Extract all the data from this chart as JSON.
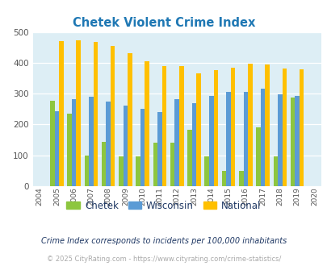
{
  "title": "Chetek Violent Crime Index",
  "years": [
    2005,
    2006,
    2007,
    2008,
    2009,
    2010,
    2011,
    2012,
    2013,
    2014,
    2015,
    2016,
    2017,
    2018,
    2019
  ],
  "chetek": [
    278,
    234,
    98,
    143,
    97,
    97,
    140,
    140,
    184,
    97,
    50,
    50,
    192,
    97,
    287
  ],
  "wisconsin": [
    244,
    283,
    291,
    274,
    260,
    250,
    241,
    281,
    270,
    292,
    306,
    306,
    316,
    298,
    292
  ],
  "national": [
    469,
    472,
    467,
    455,
    431,
    406,
    388,
    388,
    367,
    376,
    383,
    397,
    394,
    381,
    379
  ],
  "chetek_color": "#8dc63f",
  "wisconsin_color": "#5b9bd5",
  "national_color": "#ffc000",
  "plot_bg": "#ddeef5",
  "ylim": [
    0,
    500
  ],
  "yticks": [
    0,
    100,
    200,
    300,
    400,
    500
  ],
  "xtick_years": [
    2004,
    2005,
    2006,
    2007,
    2008,
    2009,
    2010,
    2011,
    2012,
    2013,
    2014,
    2015,
    2016,
    2017,
    2018,
    2019,
    2020
  ],
  "legend_labels": [
    "Chetek",
    "Wisconsin",
    "National"
  ],
  "footnote1": "Crime Index corresponds to incidents per 100,000 inhabitants",
  "footnote2": "© 2025 CityRating.com - https://www.cityrating.com/crime-statistics/",
  "footnote1_color": "#1f3864",
  "footnote2_color": "#aaaaaa",
  "title_color": "#1f78b4",
  "bar_width": 0.26
}
